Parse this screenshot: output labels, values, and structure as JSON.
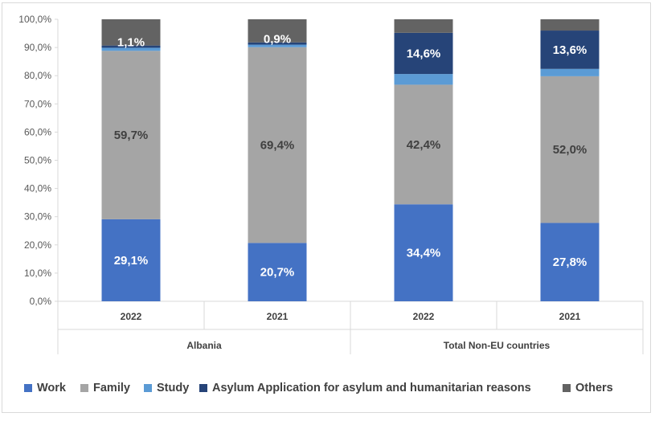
{
  "chart_data": {
    "type": "bar",
    "stacked": true,
    "percent": true,
    "categories": [
      {
        "year": "2022",
        "group": "Albania"
      },
      {
        "year": "2021",
        "group": "Albania"
      },
      {
        "year": "2022",
        "group": "Total Non-EU countries"
      },
      {
        "year": "2021",
        "group": "Total Non-EU countries"
      }
    ],
    "groups": [
      "Albania",
      "Total Non-EU countries"
    ],
    "y_ticks": [
      "0,0%",
      "10,0%",
      "20,0%",
      "30,0%",
      "40,0%",
      "50,0%",
      "60,0%",
      "70,0%",
      "80,0%",
      "90,0%",
      "100,0%"
    ],
    "ylim": [
      0,
      100
    ],
    "series": [
      {
        "name": "Work",
        "color": "#4472c4",
        "values": [
          29.1,
          20.7,
          34.4,
          27.8
        ],
        "labels": [
          "29,1%",
          "20,7%",
          "34,4%",
          "27,8%"
        ],
        "label_color": "#ffffff"
      },
      {
        "name": "Family",
        "color": "#a5a5a5",
        "values": [
          59.7,
          69.4,
          42.4,
          52.0
        ],
        "labels": [
          "59,7%",
          "69,4%",
          "42,4%",
          "52,0%"
        ],
        "label_color": "#404040"
      },
      {
        "name": "Study",
        "color": "#5b9bd5",
        "values": [
          1.1,
          0.9,
          3.8,
          2.6
        ],
        "labels": [
          "1,1%",
          "0,9%",
          "",
          ""
        ],
        "label_color": "#ffffff"
      },
      {
        "name": "Asylum Application for asylum and humanitarian reasons",
        "color": "#264478",
        "values": [
          0.8,
          0.8,
          14.6,
          13.6
        ],
        "labels": [
          "",
          "",
          "14,6%",
          "13,6%"
        ],
        "label_color": "#ffffff"
      },
      {
        "name": "Others",
        "color": "#636363",
        "values": [
          9.3,
          8.2,
          4.8,
          4.0
        ],
        "labels": [
          "",
          "",
          "",
          ""
        ],
        "label_color": "#ffffff"
      }
    ],
    "grid": false,
    "legend_position": "bottom"
  }
}
